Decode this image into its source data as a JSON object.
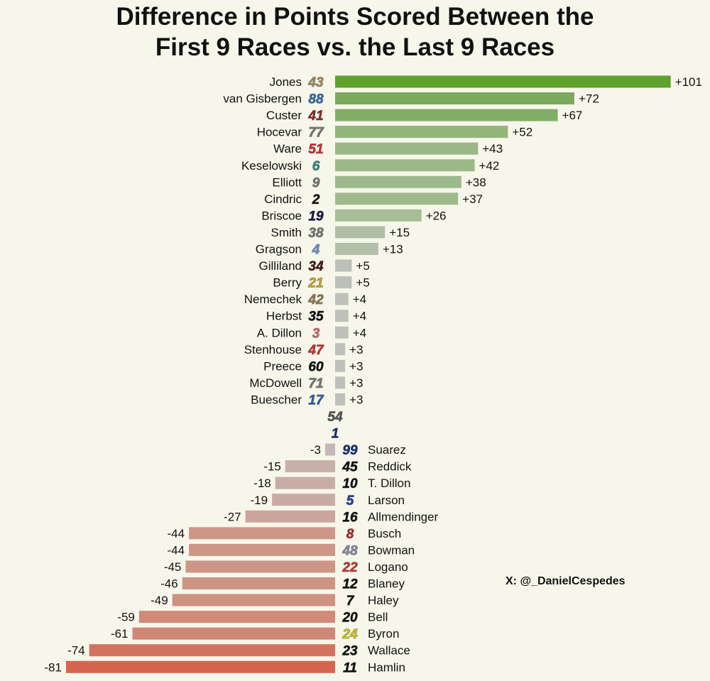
{
  "title_lines": [
    "Difference in Points Scored Between the",
    "First 9 Races vs. the Last 9 Races"
  ],
  "credit": "X: @_DanielCespedes",
  "chart_data": {
    "type": "bar",
    "orientation": "horizontal",
    "title": "Difference in Points Scored Between the First 9 Races vs. the Last 9 Races",
    "xlabel": "",
    "ylabel": "",
    "grid": false,
    "rows": [
      {
        "driver": "Jones",
        "car": "43",
        "value": 101,
        "label": "+101",
        "color": "#5fa22d",
        "num_color": "#9c8b5a"
      },
      {
        "driver": "van Gisbergen",
        "car": "88",
        "value": 72,
        "label": "+72",
        "color": "#7ba95e",
        "num_color": "#2f6fb0"
      },
      {
        "driver": "Custer",
        "car": "41",
        "value": 67,
        "label": "+67",
        "color": "#82ad66",
        "num_color": "#8a2a2a"
      },
      {
        "driver": "Hocevar",
        "car": "77",
        "value": 52,
        "label": "+52",
        "color": "#92b57b",
        "num_color": "#777777"
      },
      {
        "driver": "Ware",
        "car": "51",
        "value": 43,
        "label": "+43",
        "color": "#99b886",
        "num_color": "#cc2f2f"
      },
      {
        "driver": "Keselowski",
        "car": "6",
        "value": 42,
        "label": "+42",
        "color": "#9ab987",
        "num_color": "#2f8a7a"
      },
      {
        "driver": "Elliott",
        "car": "9",
        "value": 38,
        "label": "+38",
        "color": "#9dba8c",
        "num_color": "#777777"
      },
      {
        "driver": "Cindric",
        "car": "2",
        "value": 37,
        "label": "+37",
        "color": "#9eba8d",
        "num_color": "#111111"
      },
      {
        "driver": "Briscoe",
        "car": "19",
        "value": 26,
        "label": "+26",
        "color": "#a6bd98",
        "num_color": "#1a1a4a"
      },
      {
        "driver": "Smith",
        "car": "38",
        "value": 15,
        "label": "+15",
        "color": "#afbfa6",
        "num_color": "#777777"
      },
      {
        "driver": "Gragson",
        "car": "4",
        "value": 13,
        "label": "+13",
        "color": "#b2c0a9",
        "num_color": "#6b8ec7"
      },
      {
        "driver": "Gilliland",
        "car": "34",
        "value": 5,
        "label": "+5",
        "color": "#bcc0b8",
        "num_color": "#4a1818"
      },
      {
        "driver": "Berry",
        "car": "21",
        "value": 5,
        "label": "+5",
        "color": "#bcc0b8",
        "num_color": "#c9a227"
      },
      {
        "driver": "Nemechek",
        "car": "42",
        "value": 4,
        "label": "+4",
        "color": "#bec0ba",
        "num_color": "#8a7a4a"
      },
      {
        "driver": "Herbst",
        "car": "35",
        "value": 4,
        "label": "+4",
        "color": "#bec0ba",
        "num_color": "#111111"
      },
      {
        "driver": "A. Dillon",
        "car": "3",
        "value": 4,
        "label": "+4",
        "color": "#bec0ba",
        "num_color": "#c96b6b"
      },
      {
        "driver": "Stenhouse",
        "car": "47",
        "value": 3,
        "label": "+3",
        "color": "#bfc0bc",
        "num_color": "#cc2f2f"
      },
      {
        "driver": "Preece",
        "car": "60",
        "value": 3,
        "label": "+3",
        "color": "#bfc0bc",
        "num_color": "#111111"
      },
      {
        "driver": "McDowell",
        "car": "71",
        "value": 3,
        "label": "+3",
        "color": "#bfc0bc",
        "num_color": "#777777"
      },
      {
        "driver": "Buescher",
        "car": "17",
        "value": 3,
        "label": "+3",
        "color": "#bfc0bc",
        "num_color": "#2f5fa0"
      },
      {
        "driver": "",
        "car": "54",
        "value": 0,
        "label": "",
        "color": "#c0c0c0",
        "num_color": "#555555"
      },
      {
        "driver": "",
        "car": "1",
        "value": 0,
        "label": "",
        "color": "#c0c0c0",
        "num_color": "#1a2f7a"
      },
      {
        "driver": "Suarez",
        "car": "99",
        "value": -3,
        "label": "-3",
        "color": "#c4b8b6",
        "num_color": "#1a2f7a"
      },
      {
        "driver": "Reddick",
        "car": "45",
        "value": -15,
        "label": "-15",
        "color": "#c8afa9",
        "num_color": "#111111"
      },
      {
        "driver": "T. Dillon",
        "car": "10",
        "value": -18,
        "label": "-18",
        "color": "#c9aca6",
        "num_color": "#111111"
      },
      {
        "driver": "Larson",
        "car": "5",
        "value": -19,
        "label": "-19",
        "color": "#c9aba5",
        "num_color": "#1a3fa0"
      },
      {
        "driver": "Allmendinger",
        "car": "16",
        "value": -27,
        "label": "-27",
        "color": "#cba59b",
        "num_color": "#111111"
      },
      {
        "driver": "Busch",
        "car": "8",
        "value": -44,
        "label": "-44",
        "color": "#cd9686",
        "num_color": "#a03030"
      },
      {
        "driver": "Bowman",
        "car": "48",
        "value": -44,
        "label": "-44",
        "color": "#cd9686",
        "num_color": "#8a8aa0"
      },
      {
        "driver": "Logano",
        "car": "22",
        "value": -45,
        "label": "-45",
        "color": "#cd9585",
        "num_color": "#cc2f2f"
      },
      {
        "driver": "Blaney",
        "car": "12",
        "value": -46,
        "label": "-46",
        "color": "#cd9484",
        "num_color": "#111111"
      },
      {
        "driver": "Haley",
        "car": "7",
        "value": -49,
        "label": "-49",
        "color": "#cd9282",
        "num_color": "#111111"
      },
      {
        "driver": "Bell",
        "car": "20",
        "value": -59,
        "label": "-59",
        "color": "#cf8a78",
        "num_color": "#111111"
      },
      {
        "driver": "Byron",
        "car": "24",
        "value": -61,
        "label": "-61",
        "color": "#cf8876",
        "num_color": "#c9c21a"
      },
      {
        "driver": "Wallace",
        "car": "23",
        "value": -74,
        "label": "-74",
        "color": "#d27360",
        "num_color": "#111111"
      },
      {
        "driver": "Hamlin",
        "car": "11",
        "value": -81,
        "label": "-81",
        "color": "#d4664f",
        "num_color": "#111111"
      }
    ]
  }
}
